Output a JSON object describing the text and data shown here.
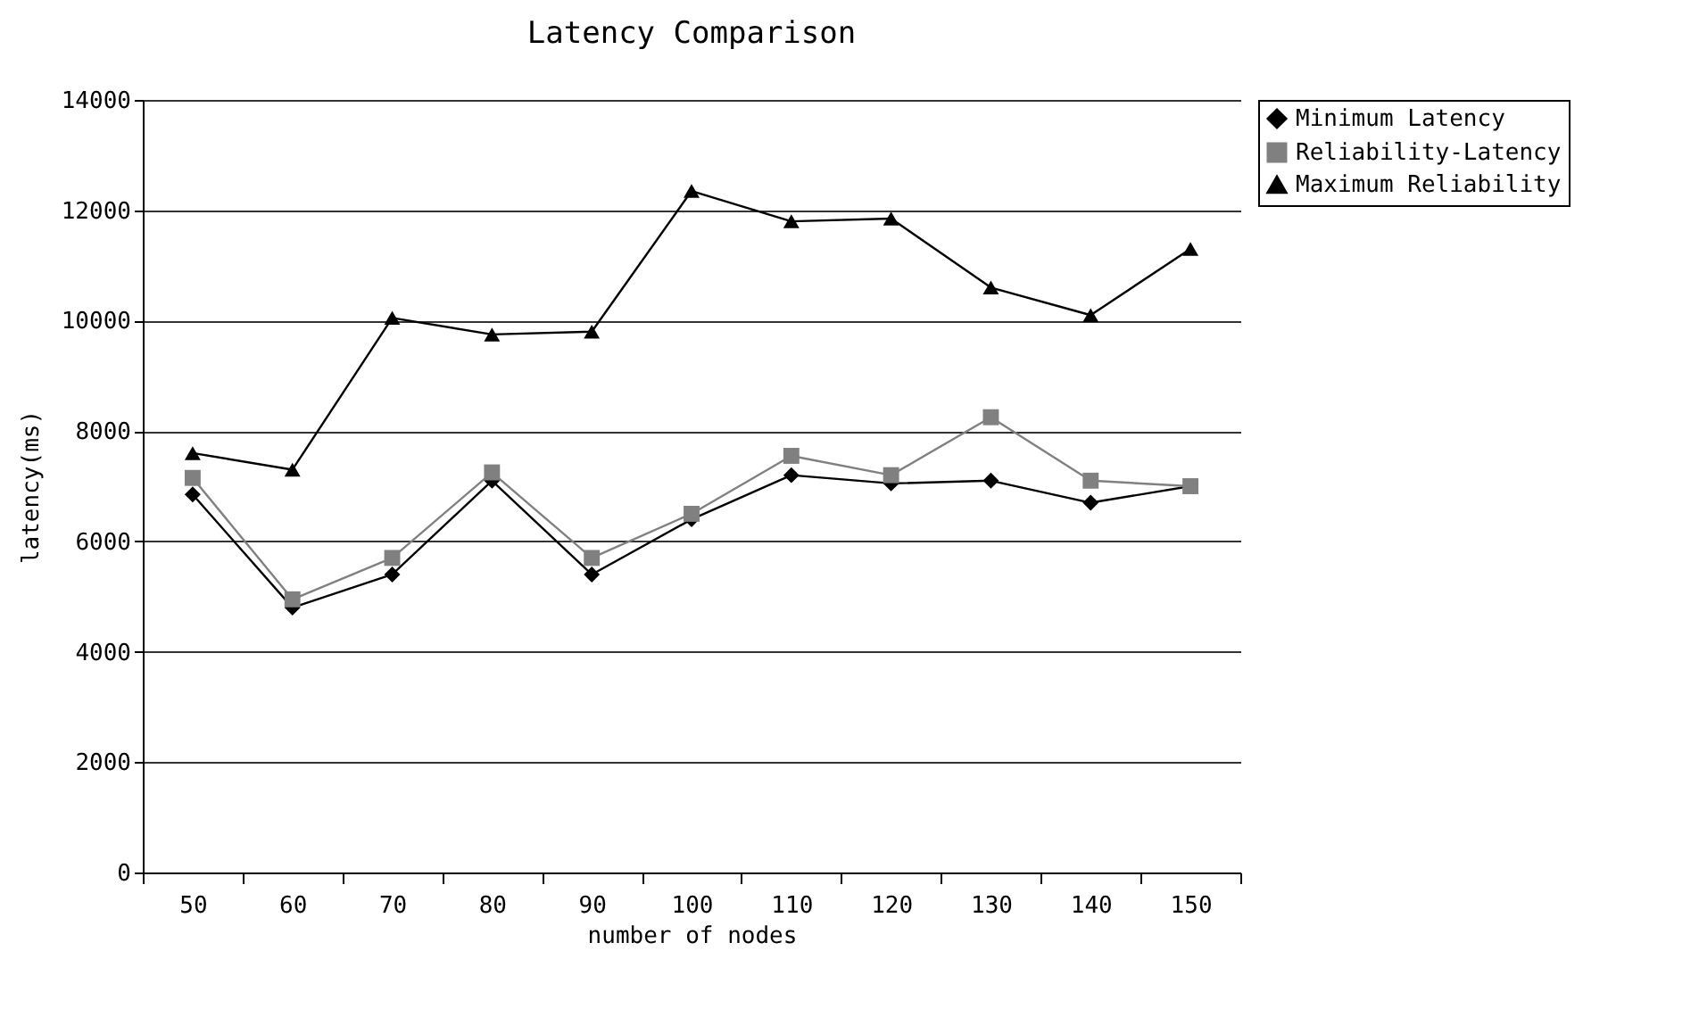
{
  "chart_data": {
    "type": "line",
    "title": "Latency Comparison",
    "xlabel": "number of nodes",
    "ylabel": "latency(ms)",
    "categories": [
      "50",
      "60",
      "70",
      "80",
      "90",
      "100",
      "110",
      "120",
      "130",
      "140",
      "150"
    ],
    "series": [
      {
        "name": "Minimum Latency",
        "color": "#000000",
        "marker": "diamond",
        "values": [
          6850,
          4800,
          5400,
          7100,
          5400,
          6400,
          7200,
          7050,
          7100,
          6700,
          7000
        ]
      },
      {
        "name": "Reliability-Latency",
        "color": "#808080",
        "marker": "square",
        "values": [
          7150,
          4950,
          5700,
          7250,
          5700,
          6500,
          7550,
          7200,
          8250,
          7100,
          7000
        ]
      },
      {
        "name": "Maximum Reliability",
        "color": "#000000",
        "marker": "triangle",
        "values": [
          7600,
          7300,
          10050,
          9750,
          9800,
          12350,
          11800,
          11850,
          10600,
          10100,
          11300
        ]
      }
    ],
    "ylim": [
      0,
      14000
    ],
    "yticks": [
      0,
      2000,
      4000,
      6000,
      8000,
      10000,
      12000,
      14000
    ],
    "grid": "y",
    "legend": "right"
  }
}
